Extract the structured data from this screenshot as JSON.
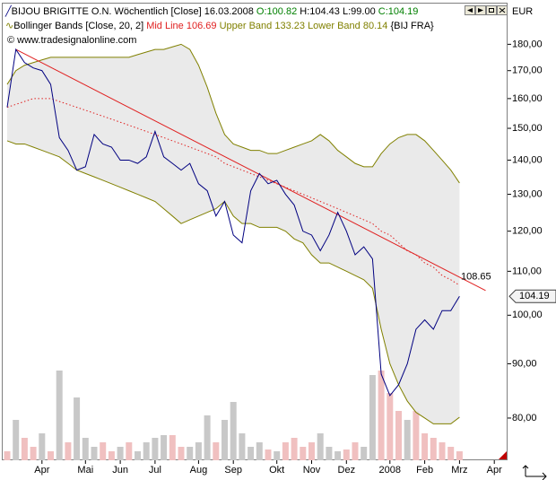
{
  "chart_data": {
    "type": "line",
    "header": {
      "symbol": "BIJOU BRIGITTE O.N. Wöchentlich [Close]",
      "date": "16.03.2008",
      "ohlc": [
        {
          "label": "O:",
          "value": 100.82,
          "color": "#008000"
        },
        {
          "label": "H:",
          "value": 104.43,
          "color": "#000000"
        },
        {
          "label": "L:",
          "value": 99.0,
          "value_label": "99.00",
          "color": "#000000"
        },
        {
          "label": "C:",
          "value": 104.19,
          "color": "#008000"
        }
      ],
      "indicator": "Bollinger Bands [Close, 20, 2]",
      "exchange": "{BIJ FRA}",
      "copyright": "© www.tradesignalonline.com"
    },
    "currency": "EUR",
    "log_scale": true,
    "ylim": [
      73,
      197
    ],
    "yticks": [
      {
        "value": 180,
        "label": "180,00"
      },
      {
        "value": 170,
        "label": "170,00"
      },
      {
        "value": 160,
        "label": "160,00"
      },
      {
        "value": 150,
        "label": "150,00"
      },
      {
        "value": 140,
        "label": "140,00"
      },
      {
        "value": 130,
        "label": "130,00"
      },
      {
        "value": 120,
        "label": "120,00"
      },
      {
        "value": 110,
        "label": "110,00"
      },
      {
        "value": 100,
        "label": "100,00"
      },
      {
        "value": 90,
        "label": "90,00"
      },
      {
        "value": 80,
        "label": "80,00"
      }
    ],
    "categories": [
      null,
      null,
      null,
      null,
      "Apr",
      null,
      null,
      null,
      null,
      "Mai",
      null,
      null,
      null,
      "Jun",
      null,
      null,
      null,
      "Jul",
      null,
      null,
      null,
      null,
      "Aug",
      null,
      null,
      null,
      "Sep",
      null,
      null,
      null,
      null,
      "Okt",
      null,
      null,
      null,
      "Nov",
      null,
      null,
      null,
      "Dez",
      null,
      null,
      null,
      null,
      "2008",
      null,
      null,
      null,
      "Feb",
      null,
      null,
      null,
      "Mrz",
      null,
      null,
      null,
      "Apr",
      null
    ],
    "series": [
      {
        "name": "BIJOU BRIGITTE O.N. Wöchentlich [Close]",
        "color": "#000080",
        "values": [
          157,
          178,
          173,
          171,
          170,
          165,
          147,
          143,
          137,
          138,
          148,
          145,
          144,
          140,
          140,
          139,
          141,
          149,
          141,
          139,
          137,
          139,
          133,
          131,
          124,
          128,
          119,
          117,
          131,
          136,
          133,
          134,
          130,
          127,
          120,
          119,
          115,
          119,
          125,
          120,
          114,
          116,
          113,
          88,
          84,
          86,
          90,
          97,
          99,
          97,
          101,
          101,
          104.19,
          null,
          null,
          null,
          null,
          null
        ]
      },
      {
        "name": "Mid Line",
        "last": 106.69,
        "color": "#e02020",
        "values": [
          157,
          158,
          159,
          160,
          160,
          160,
          159,
          158,
          157,
          156,
          155,
          154,
          153,
          152,
          151,
          150,
          149,
          148,
          147,
          146,
          145,
          144,
          143,
          142,
          141,
          139,
          138,
          137,
          136,
          135,
          134,
          133,
          132,
          131,
          130,
          129,
          128,
          127,
          126,
          125,
          124,
          123,
          122,
          120,
          119,
          117,
          115,
          114,
          112,
          111,
          109,
          108,
          106.69,
          null,
          null,
          null,
          null,
          null
        ]
      },
      {
        "name": "Upper Band",
        "last": 133.23,
        "color": "#808000",
        "values": [
          165,
          170,
          172,
          173,
          174,
          175,
          175,
          175,
          175,
          175,
          175,
          175,
          175,
          175,
          175,
          176,
          177,
          178,
          178,
          179,
          180,
          178,
          172,
          164,
          155,
          148,
          145,
          144,
          143,
          143,
          142,
          142,
          143,
          144,
          145,
          146,
          148,
          146,
          143,
          141,
          139,
          138,
          138,
          142,
          145,
          147,
          148,
          148,
          146,
          143,
          140,
          137,
          133.23,
          null,
          null,
          null,
          null,
          null
        ]
      },
      {
        "name": "Lower Band",
        "last": 80.14,
        "color": "#808000",
        "values": [
          146,
          145,
          145,
          144,
          143,
          142,
          141,
          139,
          137,
          136,
          135,
          134,
          133,
          132,
          131,
          130,
          129,
          128,
          126,
          124,
          122,
          123,
          124,
          125,
          126,
          128,
          124,
          122,
          122,
          121,
          121,
          121,
          120,
          118,
          117,
          114,
          112,
          112,
          111,
          110,
          109,
          108,
          106,
          97,
          90,
          86,
          83,
          81,
          80,
          79,
          79,
          79,
          80.14,
          null,
          null,
          null,
          null,
          null
        ]
      }
    ],
    "band_fill": "#e6e6e6",
    "volume": {
      "values": [
        10,
        45,
        25,
        15,
        30,
        10,
        100,
        20,
        70,
        25,
        15,
        20,
        10,
        15,
        20,
        10,
        20,
        25,
        28,
        28,
        15,
        15,
        20,
        50,
        20,
        45,
        65,
        30,
        15,
        20,
        12,
        10,
        20,
        25,
        15,
        20,
        30,
        15,
        10,
        12,
        20,
        15,
        95,
        100,
        75,
        55,
        45,
        55,
        30,
        25,
        20,
        15,
        10,
        null,
        null,
        null,
        null,
        null
      ],
      "colors": [
        "#f0c0c0",
        "#c8c8c8",
        "#f0c0c0",
        "#f0c0c0",
        "#c8c8c8",
        "#f0c0c0",
        "#c8c8c8",
        "#f0c0c0",
        "#c8c8c8",
        "#c8c8c8",
        "#c8c8c8",
        "#f0c0c0",
        "#f0c0c0",
        "#c8c8c8",
        "#f0c0c0",
        "#c8c8c8",
        "#c8c8c8",
        "#c8c8c8",
        "#c8c8c8",
        "#f0c0c0",
        "#f0c0c0",
        "#c8c8c8",
        "#c8c8c8",
        "#c8c8c8",
        "#f0c0c0",
        "#c8c8c8",
        "#c8c8c8",
        "#c8c8c8",
        "#c8c8c8",
        "#c8c8c8",
        "#f0c0c0",
        "#c8c8c8",
        "#f0c0c0",
        "#f0c0c0",
        "#f0c0c0",
        "#f0c0c0",
        "#c8c8c8",
        "#c8c8c8",
        "#c8c8c8",
        "#f0c0c0",
        "#f0c0c0",
        "#c8c8c8",
        "#c8c8c8",
        "#f0c0c0",
        "#f0c0c0",
        "#f0c0c0",
        "#c8c8c8",
        "#f0c0c0",
        "#f0c0c0",
        "#f0c0c0",
        "#f0c0c0",
        "#f0c0c0",
        "#f0c0c0",
        null,
        null,
        null,
        null,
        null
      ]
    },
    "trendline": {
      "color": "#e02020",
      "start": {
        "x": 1,
        "y": 178
      },
      "end": {
        "x": 55,
        "y": 105.5
      },
      "label": 108.65
    },
    "price_tag": 104.19
  }
}
